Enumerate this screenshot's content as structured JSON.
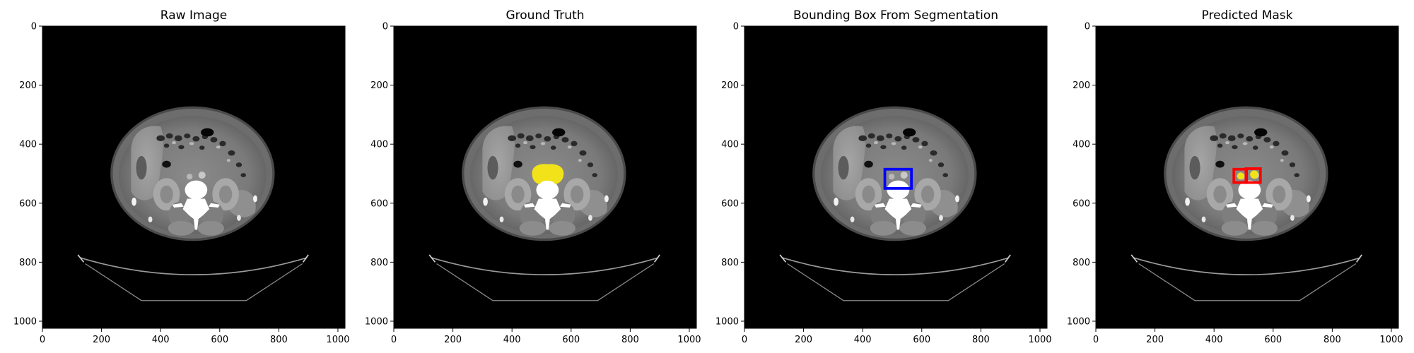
{
  "figure": {
    "panels": [
      {
        "title": "Raw Image",
        "overlay": "none"
      },
      {
        "title": "Ground Truth",
        "overlay": "mask"
      },
      {
        "title": "Bounding Box From Segmentation",
        "overlay": "bbox"
      },
      {
        "title": "Predicted Mask",
        "overlay": "predicted"
      }
    ],
    "axes": {
      "xticks": [
        0,
        200,
        400,
        600,
        800,
        1000
      ],
      "yticks": [
        0,
        200,
        400,
        600,
        800,
        1000
      ],
      "xlim": [
        0,
        1024
      ],
      "ylim": [
        1024,
        0
      ]
    },
    "ground_truth_mask": {
      "center": [
        520,
        510
      ],
      "color": "#f2e21a"
    },
    "segmentation_bbox": {
      "x0": 475,
      "y0": 485,
      "x1": 565,
      "y1": 550,
      "color": "#0000ff"
    },
    "predicted_boxes": [
      {
        "x0": 467,
        "y0": 485,
        "x1": 510,
        "y1": 530,
        "color": "#ff0000"
      },
      {
        "x0": 508,
        "y0": 483,
        "x1": 557,
        "y1": 530,
        "color": "#ff0000"
      }
    ],
    "predicted_mask": {
      "blobs": [
        {
          "x": 490,
          "y": 508,
          "r": 12
        },
        {
          "x": 536,
          "y": 503,
          "r": 14
        }
      ],
      "color": "#f2e21a"
    }
  }
}
